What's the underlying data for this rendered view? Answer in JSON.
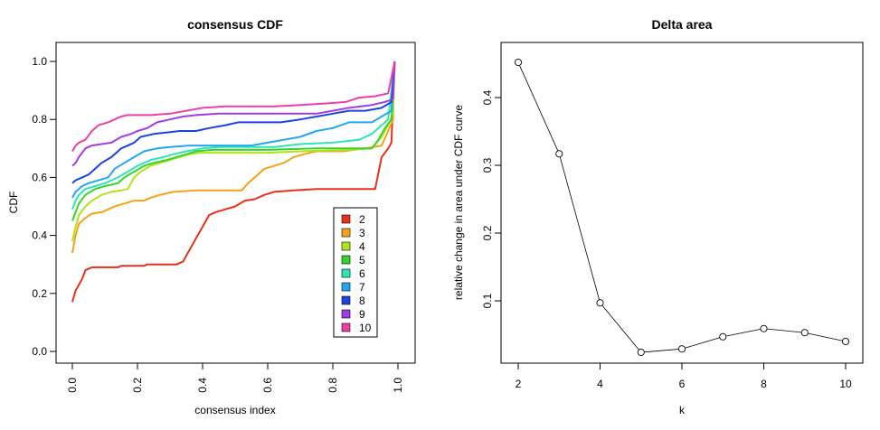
{
  "chart_data": [
    {
      "type": "line",
      "title": "consensus CDF",
      "xlabel": "consensus index",
      "ylabel": "CDF",
      "xlim": [
        0,
        1
      ],
      "ylim": [
        0,
        1
      ],
      "xticks": [
        "0.0",
        "0.2",
        "0.4",
        "0.6",
        "0.8",
        "1.0"
      ],
      "yticks": [
        "0.0",
        "0.2",
        "0.4",
        "0.6",
        "0.8",
        "1.0"
      ],
      "legend_position": "bottom-right",
      "series": [
        {
          "name": "2",
          "color": "#e8301c",
          "points": [
            [
              0.0,
              0.17
            ],
            [
              0.01,
              0.21
            ],
            [
              0.02,
              0.23
            ],
            [
              0.03,
              0.25
            ],
            [
              0.04,
              0.28
            ],
            [
              0.06,
              0.29
            ],
            [
              0.09,
              0.29
            ],
            [
              0.14,
              0.29
            ],
            [
              0.15,
              0.295
            ],
            [
              0.2,
              0.295
            ],
            [
              0.22,
              0.295
            ],
            [
              0.23,
              0.3
            ],
            [
              0.32,
              0.3
            ],
            [
              0.34,
              0.31
            ],
            [
              0.36,
              0.35
            ],
            [
              0.38,
              0.39
            ],
            [
              0.4,
              0.43
            ],
            [
              0.42,
              0.47
            ],
            [
              0.44,
              0.48
            ],
            [
              0.47,
              0.49
            ],
            [
              0.5,
              0.5
            ],
            [
              0.53,
              0.52
            ],
            [
              0.56,
              0.525
            ],
            [
              0.59,
              0.54
            ],
            [
              0.62,
              0.55
            ],
            [
              0.68,
              0.555
            ],
            [
              0.75,
              0.56
            ],
            [
              0.93,
              0.56
            ],
            [
              0.95,
              0.67
            ],
            [
              0.97,
              0.7
            ],
            [
              0.98,
              0.72
            ],
            [
              0.99,
              1.0
            ]
          ]
        },
        {
          "name": "3",
          "color": "#f6a219",
          "points": [
            [
              0.0,
              0.34
            ],
            [
              0.01,
              0.4
            ],
            [
              0.02,
              0.44
            ],
            [
              0.04,
              0.46
            ],
            [
              0.06,
              0.475
            ],
            [
              0.09,
              0.48
            ],
            [
              0.11,
              0.49
            ],
            [
              0.13,
              0.5
            ],
            [
              0.16,
              0.51
            ],
            [
              0.19,
              0.52
            ],
            [
              0.22,
              0.52
            ],
            [
              0.24,
              0.53
            ],
            [
              0.27,
              0.54
            ],
            [
              0.31,
              0.55
            ],
            [
              0.38,
              0.555
            ],
            [
              0.52,
              0.555
            ],
            [
              0.54,
              0.58
            ],
            [
              0.56,
              0.6
            ],
            [
              0.59,
              0.63
            ],
            [
              0.62,
              0.64
            ],
            [
              0.65,
              0.65
            ],
            [
              0.68,
              0.67
            ],
            [
              0.71,
              0.68
            ],
            [
              0.75,
              0.69
            ],
            [
              0.83,
              0.69
            ],
            [
              0.9,
              0.7
            ],
            [
              0.95,
              0.71
            ],
            [
              0.97,
              0.76
            ],
            [
              0.985,
              0.8
            ],
            [
              0.99,
              1.0
            ]
          ]
        },
        {
          "name": "4",
          "color": "#b2e21c",
          "points": [
            [
              0.0,
              0.38
            ],
            [
              0.01,
              0.43
            ],
            [
              0.02,
              0.47
            ],
            [
              0.04,
              0.5
            ],
            [
              0.06,
              0.52
            ],
            [
              0.09,
              0.54
            ],
            [
              0.12,
              0.55
            ],
            [
              0.15,
              0.555
            ],
            [
              0.17,
              0.56
            ],
            [
              0.19,
              0.6
            ],
            [
              0.21,
              0.62
            ],
            [
              0.24,
              0.64
            ],
            [
              0.27,
              0.65
            ],
            [
              0.3,
              0.66
            ],
            [
              0.33,
              0.67
            ],
            [
              0.36,
              0.68
            ],
            [
              0.39,
              0.685
            ],
            [
              0.6,
              0.685
            ],
            [
              0.7,
              0.69
            ],
            [
              0.85,
              0.695
            ],
            [
              0.92,
              0.7
            ],
            [
              0.95,
              0.74
            ],
            [
              0.97,
              0.78
            ],
            [
              0.985,
              0.82
            ],
            [
              0.99,
              1.0
            ]
          ]
        },
        {
          "name": "5",
          "color": "#35d42c",
          "points": [
            [
              0.0,
              0.45
            ],
            [
              0.01,
              0.48
            ],
            [
              0.02,
              0.51
            ],
            [
              0.04,
              0.54
            ],
            [
              0.07,
              0.56
            ],
            [
              0.1,
              0.57
            ],
            [
              0.14,
              0.58
            ],
            [
              0.16,
              0.6
            ],
            [
              0.19,
              0.62
            ],
            [
              0.22,
              0.64
            ],
            [
              0.25,
              0.65
            ],
            [
              0.29,
              0.66
            ],
            [
              0.32,
              0.67
            ],
            [
              0.35,
              0.68
            ],
            [
              0.38,
              0.69
            ],
            [
              0.43,
              0.695
            ],
            [
              0.6,
              0.695
            ],
            [
              0.75,
              0.7
            ],
            [
              0.92,
              0.7
            ],
            [
              0.94,
              0.73
            ],
            [
              0.96,
              0.77
            ],
            [
              0.98,
              0.8
            ],
            [
              0.99,
              1.0
            ]
          ]
        },
        {
          "name": "6",
          "color": "#2ee5b5",
          "points": [
            [
              0.0,
              0.49
            ],
            [
              0.01,
              0.52
            ],
            [
              0.02,
              0.54
            ],
            [
              0.04,
              0.56
            ],
            [
              0.07,
              0.57
            ],
            [
              0.1,
              0.58
            ],
            [
              0.14,
              0.6
            ],
            [
              0.17,
              0.62
            ],
            [
              0.2,
              0.64
            ],
            [
              0.24,
              0.66
            ],
            [
              0.28,
              0.67
            ],
            [
              0.31,
              0.68
            ],
            [
              0.35,
              0.69
            ],
            [
              0.4,
              0.7
            ],
            [
              0.45,
              0.705
            ],
            [
              0.62,
              0.705
            ],
            [
              0.7,
              0.715
            ],
            [
              0.8,
              0.72
            ],
            [
              0.88,
              0.73
            ],
            [
              0.92,
              0.75
            ],
            [
              0.95,
              0.78
            ],
            [
              0.97,
              0.8
            ],
            [
              0.99,
              1.0
            ]
          ]
        },
        {
          "name": "7",
          "color": "#22a7ee",
          "points": [
            [
              0.0,
              0.53
            ],
            [
              0.01,
              0.55
            ],
            [
              0.03,
              0.57
            ],
            [
              0.05,
              0.58
            ],
            [
              0.08,
              0.59
            ],
            [
              0.11,
              0.6
            ],
            [
              0.13,
              0.63
            ],
            [
              0.16,
              0.65
            ],
            [
              0.19,
              0.67
            ],
            [
              0.22,
              0.69
            ],
            [
              0.26,
              0.7
            ],
            [
              0.3,
              0.705
            ],
            [
              0.36,
              0.71
            ],
            [
              0.55,
              0.71
            ],
            [
              0.6,
              0.72
            ],
            [
              0.65,
              0.73
            ],
            [
              0.7,
              0.74
            ],
            [
              0.75,
              0.76
            ],
            [
              0.8,
              0.77
            ],
            [
              0.85,
              0.79
            ],
            [
              0.92,
              0.79
            ],
            [
              0.95,
              0.81
            ],
            [
              0.98,
              0.83
            ],
            [
              0.99,
              1.0
            ]
          ]
        },
        {
          "name": "8",
          "color": "#1c44e0",
          "points": [
            [
              0.0,
              0.58
            ],
            [
              0.01,
              0.59
            ],
            [
              0.03,
              0.6
            ],
            [
              0.05,
              0.61
            ],
            [
              0.07,
              0.63
            ],
            [
              0.09,
              0.65
            ],
            [
              0.12,
              0.67
            ],
            [
              0.15,
              0.7
            ],
            [
              0.19,
              0.72
            ],
            [
              0.21,
              0.74
            ],
            [
              0.25,
              0.75
            ],
            [
              0.33,
              0.76
            ],
            [
              0.38,
              0.76
            ],
            [
              0.42,
              0.77
            ],
            [
              0.47,
              0.78
            ],
            [
              0.51,
              0.79
            ],
            [
              0.55,
              0.79
            ],
            [
              0.64,
              0.79
            ],
            [
              0.7,
              0.8
            ],
            [
              0.75,
              0.81
            ],
            [
              0.8,
              0.82
            ],
            [
              0.85,
              0.83
            ],
            [
              0.9,
              0.83
            ],
            [
              0.95,
              0.84
            ],
            [
              0.98,
              0.86
            ],
            [
              0.99,
              1.0
            ]
          ]
        },
        {
          "name": "9",
          "color": "#a13ce6",
          "points": [
            [
              0.0,
              0.64
            ],
            [
              0.01,
              0.65
            ],
            [
              0.02,
              0.67
            ],
            [
              0.04,
              0.7
            ],
            [
              0.06,
              0.71
            ],
            [
              0.09,
              0.715
            ],
            [
              0.12,
              0.72
            ],
            [
              0.15,
              0.74
            ],
            [
              0.18,
              0.75
            ],
            [
              0.2,
              0.76
            ],
            [
              0.23,
              0.77
            ],
            [
              0.26,
              0.79
            ],
            [
              0.3,
              0.8
            ],
            [
              0.34,
              0.81
            ],
            [
              0.38,
              0.815
            ],
            [
              0.45,
              0.82
            ],
            [
              0.75,
              0.82
            ],
            [
              0.8,
              0.83
            ],
            [
              0.85,
              0.84
            ],
            [
              0.92,
              0.85
            ],
            [
              0.96,
              0.86
            ],
            [
              0.985,
              0.87
            ],
            [
              0.99,
              1.0
            ]
          ]
        },
        {
          "name": "10",
          "color": "#ee3fa6",
          "points": [
            [
              0.0,
              0.69
            ],
            [
              0.01,
              0.71
            ],
            [
              0.02,
              0.72
            ],
            [
              0.04,
              0.73
            ],
            [
              0.06,
              0.76
            ],
            [
              0.08,
              0.78
            ],
            [
              0.11,
              0.79
            ],
            [
              0.13,
              0.8
            ],
            [
              0.15,
              0.81
            ],
            [
              0.17,
              0.815
            ],
            [
              0.24,
              0.815
            ],
            [
              0.3,
              0.82
            ],
            [
              0.35,
              0.83
            ],
            [
              0.4,
              0.84
            ],
            [
              0.47,
              0.845
            ],
            [
              0.62,
              0.845
            ],
            [
              0.7,
              0.85
            ],
            [
              0.78,
              0.855
            ],
            [
              0.84,
              0.86
            ],
            [
              0.88,
              0.875
            ],
            [
              0.93,
              0.88
            ],
            [
              0.97,
              0.89
            ],
            [
              0.99,
              1.0
            ]
          ]
        }
      ]
    },
    {
      "type": "line",
      "title": "Delta area",
      "xlabel": "k",
      "ylabel": "relative change in area under CDF curve",
      "xlim": [
        2,
        10
      ],
      "ylim": [
        0.02,
        0.46
      ],
      "xticks": [
        "2",
        "4",
        "6",
        "8",
        "10"
      ],
      "yticks": [
        "0.1",
        "0.2",
        "0.3",
        "0.4"
      ],
      "x": [
        2,
        3,
        4,
        5,
        6,
        7,
        8,
        9,
        10
      ],
      "values": [
        0.452,
        0.317,
        0.097,
        0.024,
        0.029,
        0.047,
        0.059,
        0.053,
        0.04
      ]
    }
  ]
}
